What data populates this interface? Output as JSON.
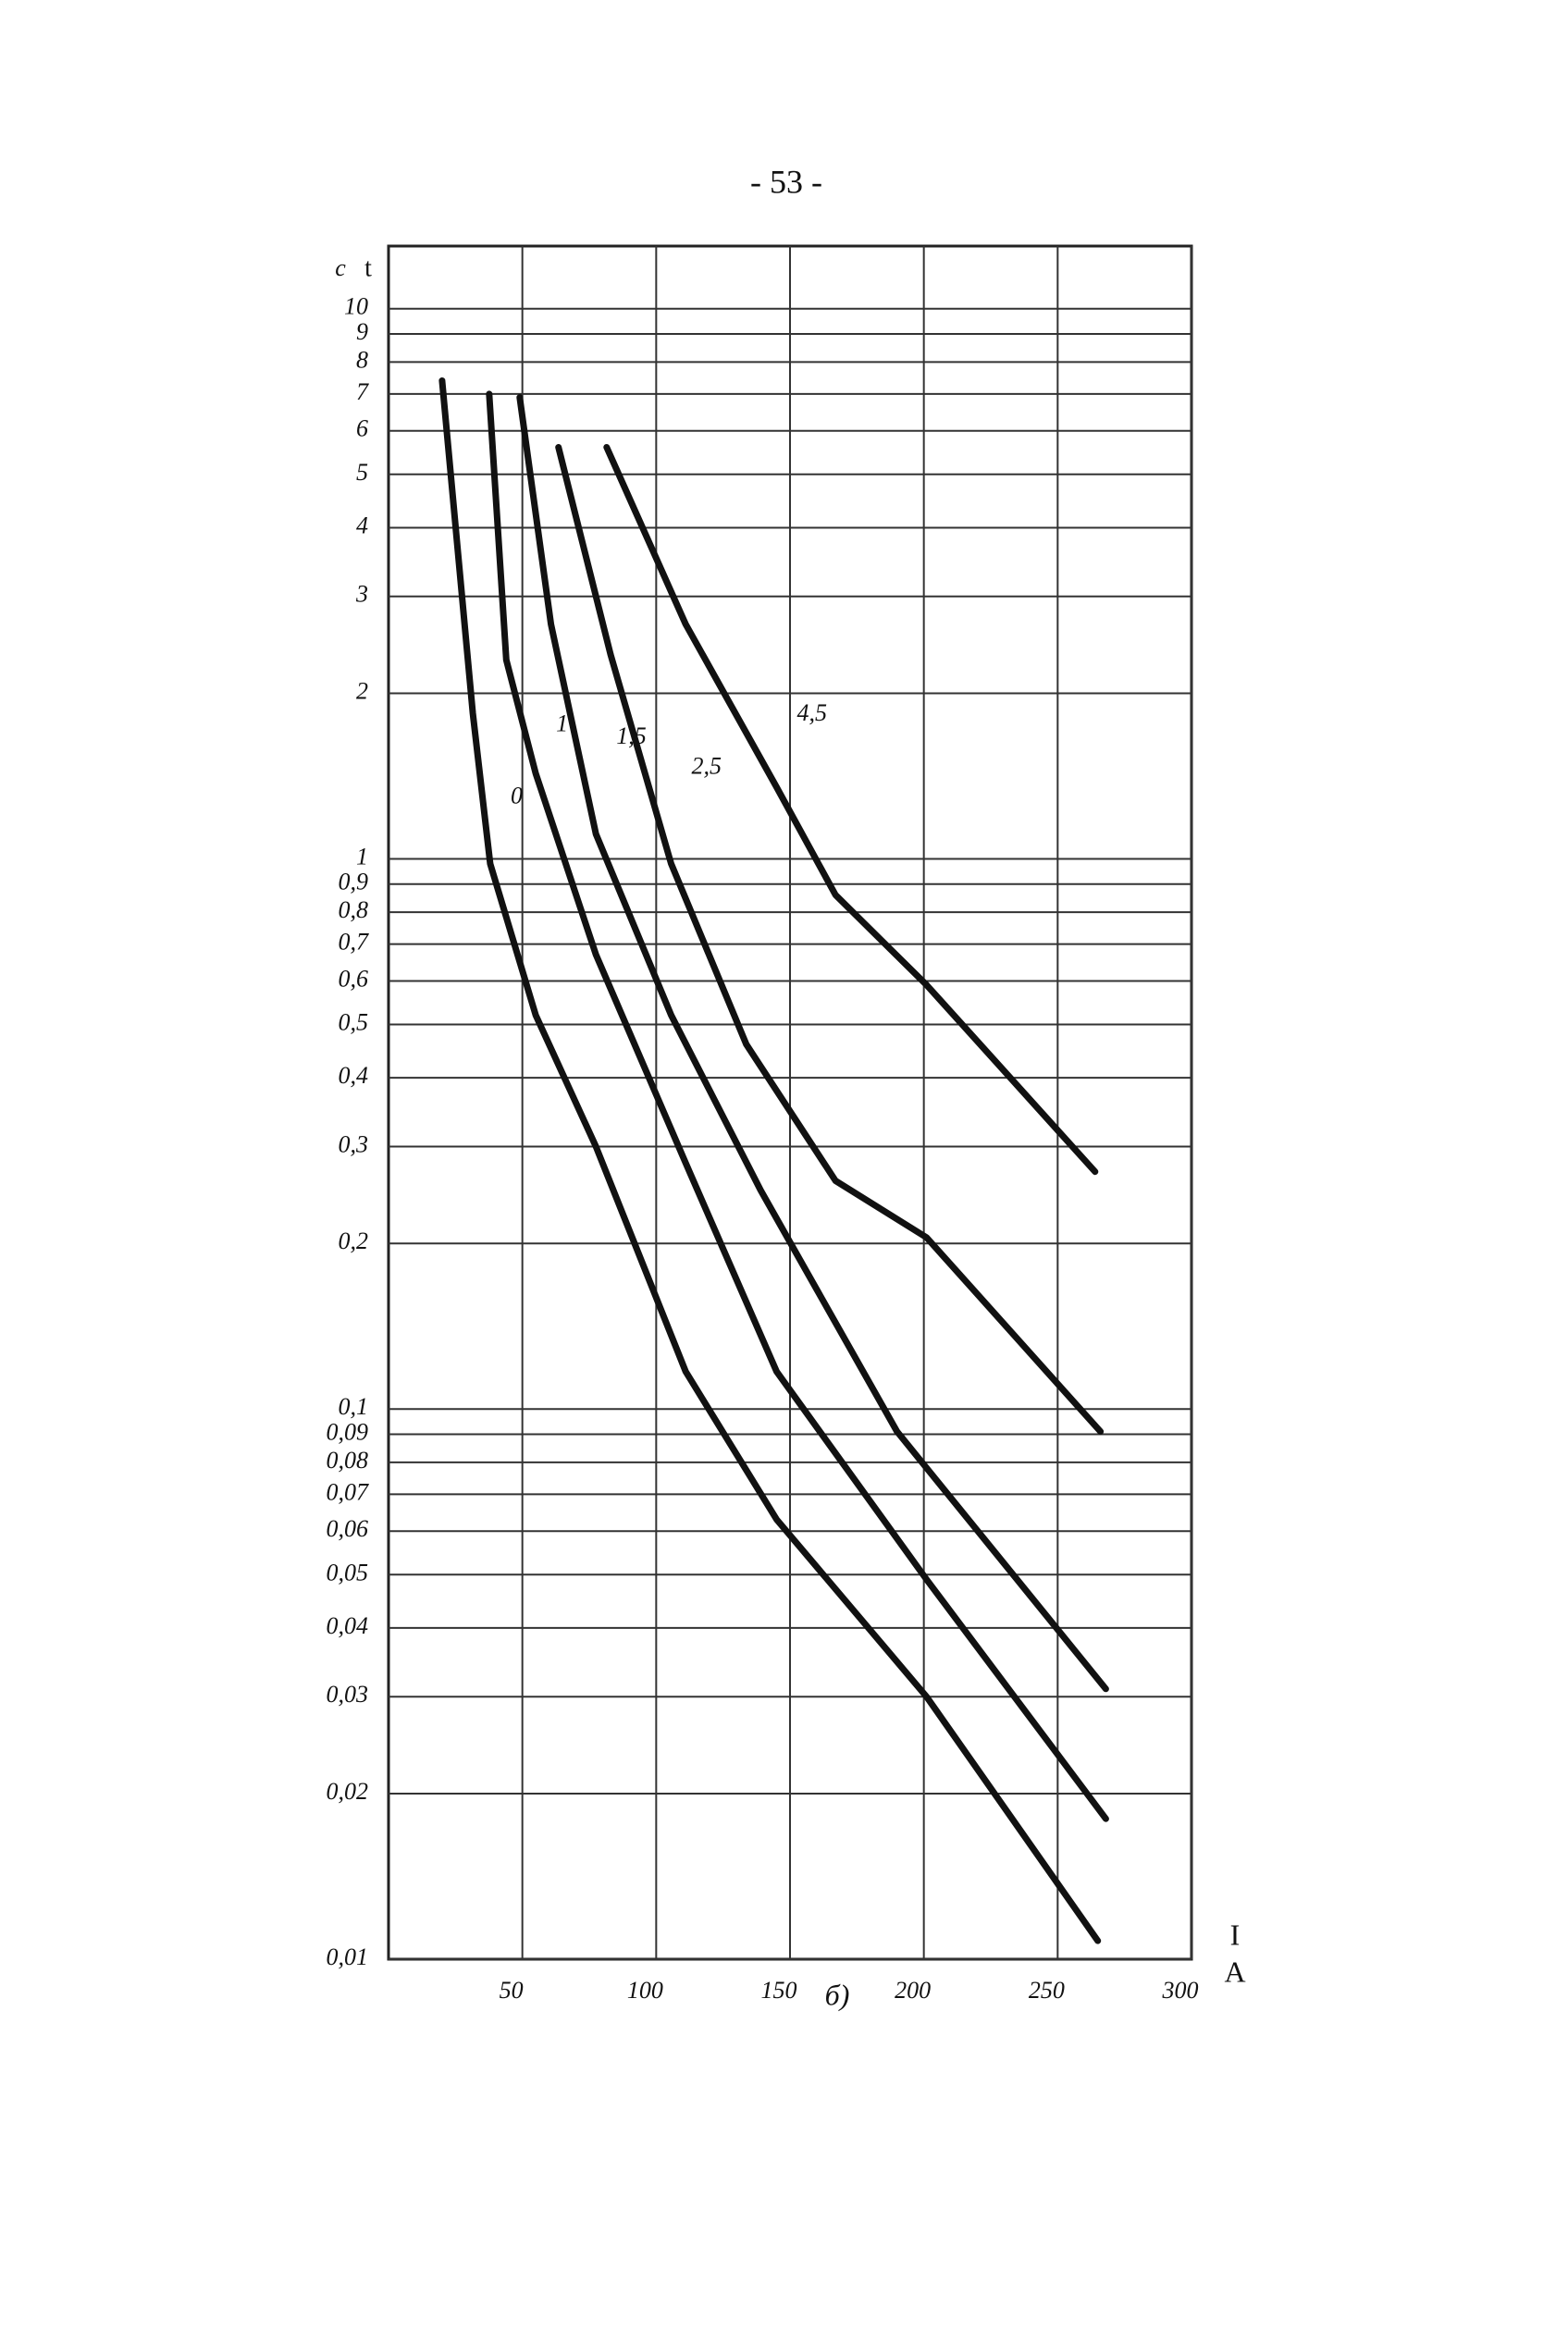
{
  "page_number": "- 53 -",
  "chart_data": {
    "type": "line",
    "caption": "б)",
    "x_label": "I",
    "x_unit": "A",
    "y_label": "t",
    "y_unit": "c",
    "log_y": true,
    "grid": true,
    "color": "#111111",
    "xlim": [
      0,
      300
    ],
    "ylim": [
      0.01,
      13
    ],
    "xticks": [
      50,
      100,
      150,
      200,
      250,
      300
    ],
    "yticks": [
      {
        "value": 0.01,
        "label": "0,01"
      },
      {
        "value": 0.02,
        "label": "0,02"
      },
      {
        "value": 0.03,
        "label": "0,03"
      },
      {
        "value": 0.04,
        "label": "0,04"
      },
      {
        "value": 0.05,
        "label": "0,05"
      },
      {
        "value": 0.06,
        "label": "0,06"
      },
      {
        "value": 0.07,
        "label": "0,07"
      },
      {
        "value": 0.08,
        "label": "0,08"
      },
      {
        "value": 0.09,
        "label": "0,09"
      },
      {
        "value": 0.1,
        "label": "0,1"
      },
      {
        "value": 0.2,
        "label": "0,2"
      },
      {
        "value": 0.3,
        "label": "0,3"
      },
      {
        "value": 0.4,
        "label": "0,4"
      },
      {
        "value": 0.5,
        "label": "0,5"
      },
      {
        "value": 0.6,
        "label": "0,6"
      },
      {
        "value": 0.7,
        "label": "0,7"
      },
      {
        "value": 0.8,
        "label": "0,8"
      },
      {
        "value": 0.9,
        "label": "0,9"
      },
      1,
      2,
      3,
      4,
      5,
      6,
      7,
      8,
      9,
      10
    ],
    "series": [
      {
        "name": "0",
        "x": [
          20,
          31.5,
          38,
          55,
          77.5,
          111,
          145,
          201,
          265
        ],
        "values": [
          7.4,
          1.84,
          0.98,
          0.52,
          0.3,
          0.117,
          0.063,
          0.03,
          0.0108
        ]
      },
      {
        "name": "1",
        "x": [
          37.6,
          44,
          55,
          77.5,
          111,
          145,
          201,
          268
        ],
        "values": [
          7.0,
          2.3,
          1.43,
          0.67,
          0.28,
          0.117,
          0.049,
          0.018
        ]
      },
      {
        "name": "1,5",
        "x": [
          49,
          60.7,
          77.5,
          105.6,
          139,
          190,
          268
        ],
        "values": [
          6.9,
          2.67,
          1.11,
          0.52,
          0.25,
          0.091,
          0.031
        ]
      },
      {
        "name": "2,5",
        "x": [
          63.5,
          83,
          105.6,
          133.7,
          167,
          201,
          266
        ],
        "values": [
          5.6,
          2.35,
          0.98,
          0.46,
          0.26,
          0.205,
          0.091
        ]
      },
      {
        "name": "4,5",
        "x": [
          81.5,
          111,
          145,
          167,
          201,
          264
        ],
        "values": [
          5.6,
          2.67,
          1.35,
          0.86,
          0.59,
          0.27
        ]
      }
    ]
  }
}
